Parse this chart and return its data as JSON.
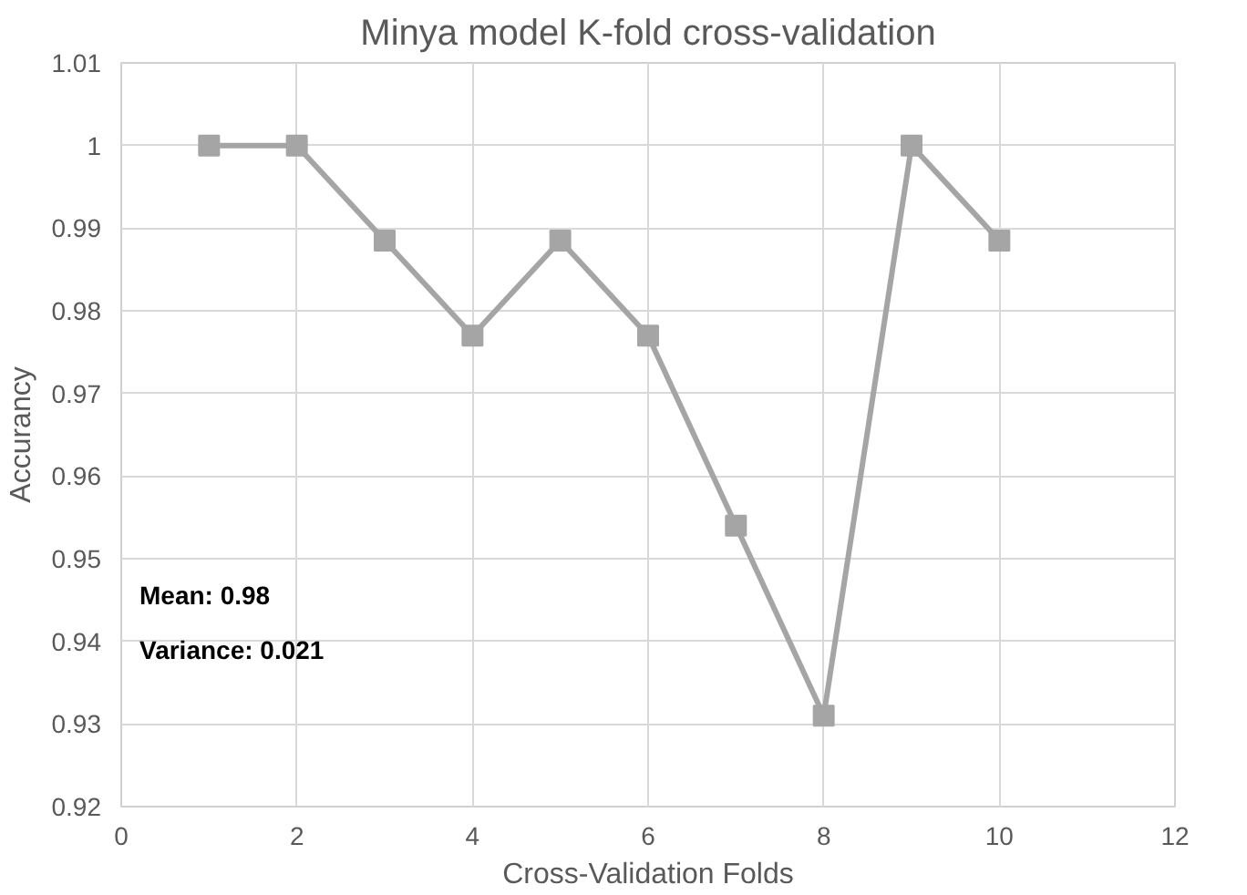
{
  "chart_data": {
    "type": "line",
    "title": "Minya model K-fold cross-validation",
    "xlabel": "Cross-Validation Folds",
    "ylabel": "Accurancy",
    "x": [
      1,
      2,
      3,
      4,
      5,
      6,
      7,
      8,
      9,
      10
    ],
    "series": [
      {
        "color": "#a5a5a5",
        "values": [
          1.0,
          1.0,
          0.9885,
          0.977,
          0.9885,
          0.977,
          0.954,
          0.931,
          1.0,
          0.9885
        ]
      }
    ],
    "xlim": [
      0,
      12
    ],
    "xticks": [
      0,
      2,
      4,
      6,
      8,
      10,
      12
    ],
    "ylim": [
      0.92,
      1.01
    ],
    "yticks": [
      0.92,
      0.93,
      0.94,
      0.95,
      0.96,
      0.97,
      0.98,
      0.99,
      1,
      1.01
    ],
    "annotations": [
      "Mean: 0.98",
      "Variance: 0.021"
    ],
    "grid": true,
    "marker": "square",
    "line_style": "solid"
  }
}
